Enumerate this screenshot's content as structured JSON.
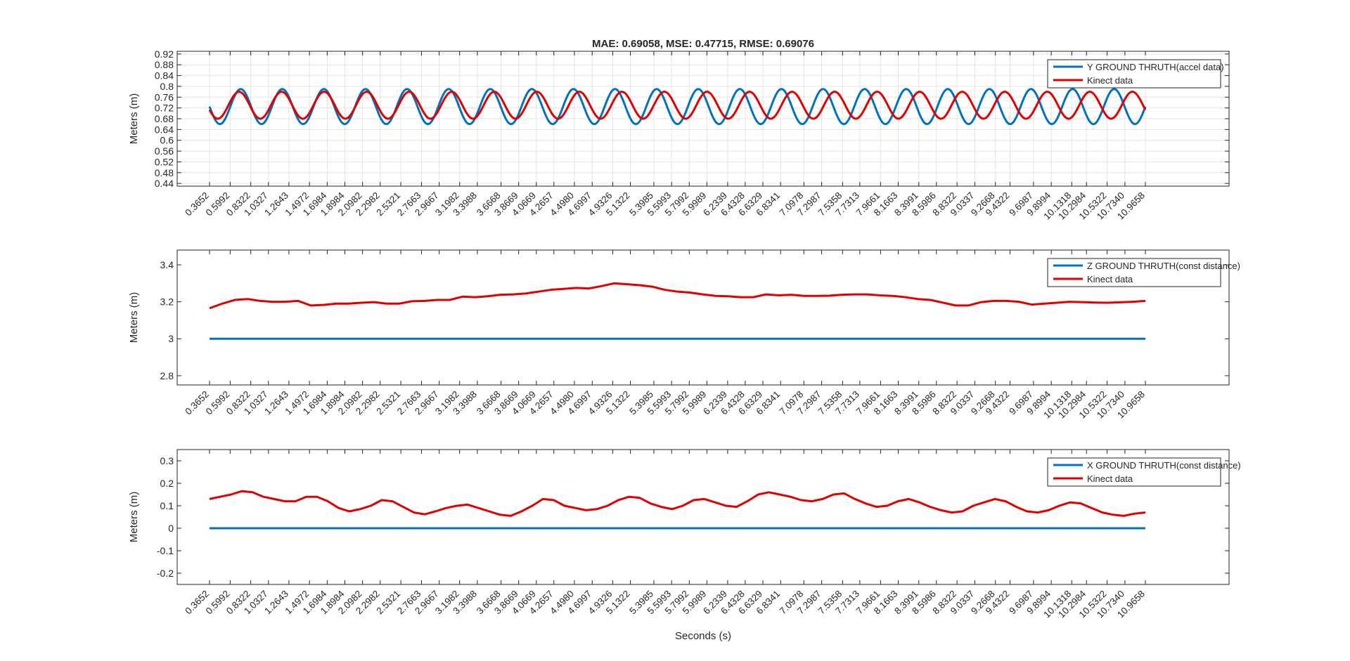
{
  "chart_data": [
    {
      "type": "line",
      "title": "MAE: 0.69058, MSE: 0.47715, RMSE: 0.69076",
      "xlabel": "",
      "ylabel": "Meters (m)",
      "ylim": [
        0.43,
        0.93
      ],
      "yticks": [
        "0.44",
        "0.48",
        "0.52",
        "0.56",
        "0.6",
        "0.64",
        "0.68",
        "0.72",
        "0.76",
        "0.8",
        "0.84",
        "0.88",
        "0.92"
      ],
      "grid": true,
      "legend_position": "top-right",
      "series": [
        {
          "name": "Y GROUND THRUTH(accel data)",
          "color": "#0072BD",
          "shape": "sinusoid",
          "center": 0.725,
          "amplitude": 0.065,
          "cycles": 22.5,
          "phase_deg": 180
        },
        {
          "name": "Kinect data",
          "color": "#E00000",
          "shape": "sinusoid",
          "center": 0.73,
          "amplitude": 0.05,
          "cycles": 22.0,
          "phase_deg": 200
        }
      ]
    },
    {
      "type": "line",
      "title": "",
      "xlabel": "",
      "ylabel": "Meters (m)",
      "ylim": [
        2.75,
        3.48
      ],
      "yticks": [
        "2.8",
        "3",
        "3.2",
        "3.4"
      ],
      "grid": false,
      "legend_position": "top-right",
      "series": [
        {
          "name": "Z GROUND THRUTH(const distance)",
          "color": "#0072BD",
          "constant": 3.0
        },
        {
          "name": "Kinect data",
          "color": "#E00000",
          "values": [
            3.165,
            3.19,
            3.21,
            3.215,
            3.205,
            3.2,
            3.2,
            3.205,
            3.18,
            3.183,
            3.19,
            3.19,
            3.195,
            3.198,
            3.19,
            3.19,
            3.203,
            3.205,
            3.21,
            3.21,
            3.228,
            3.225,
            3.23,
            3.238,
            3.24,
            3.245,
            3.255,
            3.265,
            3.27,
            3.275,
            3.272,
            3.285,
            3.3,
            3.295,
            3.29,
            3.282,
            3.265,
            3.255,
            3.25,
            3.24,
            3.232,
            3.23,
            3.225,
            3.225,
            3.24,
            3.235,
            3.238,
            3.232,
            3.232,
            3.233,
            3.238,
            3.24,
            3.24,
            3.235,
            3.232,
            3.225,
            3.215,
            3.21,
            3.195,
            3.18,
            3.18,
            3.198,
            3.205,
            3.205,
            3.2,
            3.185,
            3.19,
            3.195,
            3.2,
            3.198,
            3.196,
            3.195,
            3.197,
            3.2,
            3.205
          ]
        }
      ]
    },
    {
      "type": "line",
      "title": "",
      "xlabel": "Seconds (s)",
      "ylabel": "Meters (m)",
      "ylim": [
        -0.25,
        0.35
      ],
      "yticks": [
        "-0.2",
        "-0.1",
        "0",
        "0.1",
        "0.2",
        "0.3"
      ],
      "grid": false,
      "legend_position": "top-right",
      "series": [
        {
          "name": "X GROUND THRUTH(const distance)",
          "color": "#0072BD",
          "constant": 0.0
        },
        {
          "name": "Kinect data",
          "color": "#E00000",
          "values": [
            0.13,
            0.14,
            0.15,
            0.165,
            0.16,
            0.14,
            0.13,
            0.12,
            0.12,
            0.14,
            0.14,
            0.12,
            0.09,
            0.075,
            0.085,
            0.1,
            0.125,
            0.12,
            0.095,
            0.07,
            0.062,
            0.075,
            0.09,
            0.1,
            0.105,
            0.09,
            0.075,
            0.06,
            0.055,
            0.075,
            0.1,
            0.13,
            0.125,
            0.1,
            0.09,
            0.08,
            0.085,
            0.1,
            0.125,
            0.14,
            0.135,
            0.11,
            0.095,
            0.085,
            0.1,
            0.125,
            0.13,
            0.115,
            0.1,
            0.095,
            0.12,
            0.15,
            0.16,
            0.15,
            0.14,
            0.125,
            0.12,
            0.13,
            0.15,
            0.155,
            0.13,
            0.11,
            0.095,
            0.1,
            0.12,
            0.13,
            0.115,
            0.095,
            0.08,
            0.07,
            0.075,
            0.1,
            0.115,
            0.13,
            0.12,
            0.095,
            0.075,
            0.07,
            0.08,
            0.1,
            0.115,
            0.11,
            0.09,
            0.07,
            0.06,
            0.055,
            0.065,
            0.07
          ]
        }
      ]
    }
  ],
  "x_axis": {
    "range": [
      0.3652,
      10.9658
    ],
    "tick_labels": [
      "0.3652",
      "0.5992",
      "0.8322",
      "1.0327",
      "1.2643",
      "1.4972",
      "1.6984",
      "1.8984",
      "2.0982",
      "2.2982",
      "2.5321",
      "2.7663",
      "2.9667",
      "3.1982",
      "3.3988",
      "3.6668",
      "3.8669",
      "4.0669",
      "4.2657",
      "4.4980",
      "4.6997",
      "4.9326",
      "5.1322",
      "5.3985",
      "5.5993",
      "5.7992",
      "5.9989",
      "6.2339",
      "6.4328",
      "6.6329",
      "6.8341",
      "7.0978",
      "7.2987",
      "7.5358",
      "7.7313",
      "7.9661",
      "8.1663",
      "8.3991",
      "8.5986",
      "8.8322",
      "9.0337",
      "9.2668",
      "9.4322",
      "9.6987",
      "9.8994",
      "10.1318",
      "10.2984",
      "10.5322",
      "10.7340",
      "10.9658"
    ]
  }
}
